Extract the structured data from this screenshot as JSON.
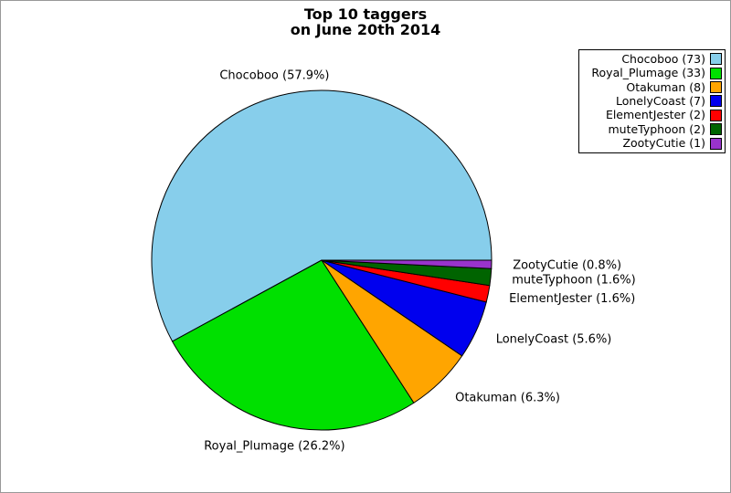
{
  "title": {
    "line1": "Top 10 taggers",
    "line2": "on June 20th 2014"
  },
  "chart_data": {
    "type": "pie",
    "title": "Top 10 taggers on June 20th 2014",
    "legend_position": "top-right",
    "start_angle_deg": 0,
    "direction": "counterclockwise",
    "background_color": "#FFFFFF",
    "slice_outline_color": "#000000",
    "slices": [
      {
        "name": "Chocoboo",
        "value": 73,
        "percent": 57.9,
        "label": "Chocoboo (57.9%)",
        "legend_label": "Chocoboo (73)",
        "color": "#87CEEB"
      },
      {
        "name": "Royal_Plumage",
        "value": 33,
        "percent": 26.2,
        "label": "Royal_Plumage (26.2%)",
        "legend_label": "Royal_Plumage (33)",
        "color": "#00E000"
      },
      {
        "name": "Otakuman",
        "value": 8,
        "percent": 6.3,
        "label": "Otakuman (6.3%)",
        "legend_label": "Otakuman (8)",
        "color": "#FFA500"
      },
      {
        "name": "LonelyCoast",
        "value": 7,
        "percent": 5.6,
        "label": "LonelyCoast (5.6%)",
        "legend_label": "LonelyCoast (7)",
        "color": "#0000EE"
      },
      {
        "name": "ElementJester",
        "value": 2,
        "percent": 1.6,
        "label": "ElementJester (1.6%)",
        "legend_label": "ElementJester (2)",
        "color": "#FF0000"
      },
      {
        "name": "muteTyphoon",
        "value": 2,
        "percent": 1.6,
        "label": "muteTyphoon (1.6%)",
        "legend_label": "muteTyphoon (2)",
        "color": "#006400"
      },
      {
        "name": "ZootyCutie",
        "value": 1,
        "percent": 0.8,
        "label": "ZootyCutie (0.8%)",
        "legend_label": "ZootyCutie (1)",
        "color": "#9933CC"
      }
    ]
  }
}
